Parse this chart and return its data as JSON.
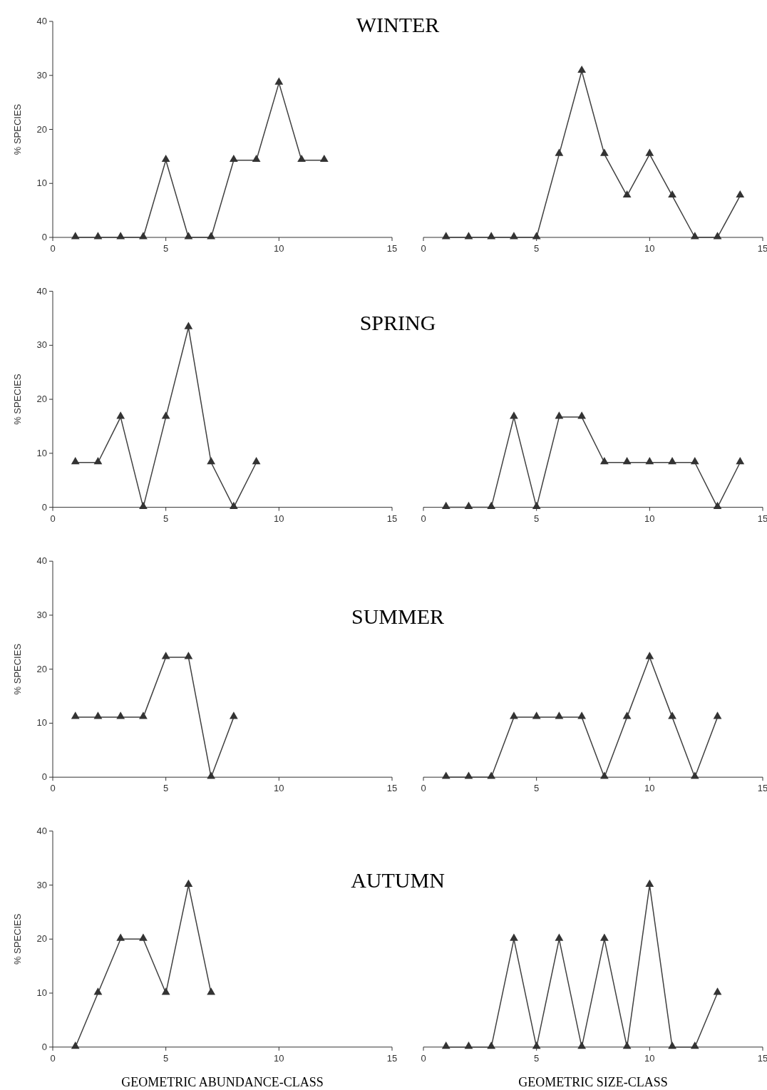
{
  "chart_data": [
    {
      "type": "line",
      "title": "WINTER",
      "ylabel": "% SPECIES",
      "x": [
        1,
        2,
        3,
        4,
        5,
        6,
        7,
        8,
        9,
        10,
        11,
        12
      ],
      "values": [
        0,
        0,
        0,
        0,
        14.3,
        0,
        0,
        14.3,
        14.3,
        28.6,
        14.3,
        14.3
      ],
      "color": "#404040",
      "marker": "triangle",
      "xlim": [
        0,
        15
      ],
      "xticks": [
        0,
        5,
        10,
        15
      ],
      "ylim": [
        0,
        40
      ],
      "yticks": [
        0,
        10,
        20,
        30,
        40
      ]
    },
    {
      "type": "line",
      "x": [
        1,
        2,
        3,
        4,
        5,
        6,
        7,
        8,
        9,
        10,
        11,
        12,
        13,
        14
      ],
      "values": [
        0,
        0,
        0,
        0,
        0,
        15.4,
        30.8,
        15.4,
        7.7,
        15.4,
        7.7,
        0,
        0,
        7.7
      ],
      "color": "#404040",
      "marker": "triangle",
      "xlim": [
        0,
        15
      ],
      "xticks": [
        0,
        5,
        10,
        15
      ],
      "ylim": [
        0,
        40
      ],
      "tick_labels": "x"
    },
    {
      "type": "line",
      "title": "SPRING",
      "ylabel": "% SPECIES",
      "x": [
        1,
        2,
        3,
        4,
        5,
        6,
        7,
        8,
        9
      ],
      "values": [
        8.3,
        8.3,
        16.7,
        0,
        16.7,
        33.3,
        8.3,
        0,
        8.3
      ],
      "color": "#404040",
      "marker": "triangle",
      "xlim": [
        0,
        15
      ],
      "xticks": [
        0,
        5,
        10,
        15
      ],
      "ylim": [
        0,
        40
      ],
      "yticks": [
        0,
        10,
        20,
        30,
        40
      ]
    },
    {
      "type": "line",
      "x": [
        1,
        2,
        3,
        4,
        5,
        6,
        7,
        8,
        9,
        10,
        11,
        12,
        13,
        14
      ],
      "values": [
        0,
        0,
        0,
        16.7,
        0,
        16.7,
        16.7,
        8.3,
        8.3,
        8.3,
        8.3,
        8.3,
        0,
        8.3
      ],
      "color": "#404040",
      "marker": "triangle",
      "xlim": [
        0,
        15
      ],
      "xticks": [
        0,
        5,
        10,
        15
      ],
      "ylim": [
        0,
        40
      ],
      "tick_labels": "x"
    },
    {
      "type": "line",
      "title": "SUMMER",
      "ylabel": "% SPECIES",
      "x": [
        1,
        2,
        3,
        4,
        5,
        6,
        7,
        8
      ],
      "values": [
        11.1,
        11.1,
        11.1,
        11.1,
        22.2,
        22.2,
        0,
        11.1
      ],
      "color": "#404040",
      "marker": "triangle",
      "xlim": [
        0,
        15
      ],
      "xticks": [
        0,
        5,
        10,
        15
      ],
      "ylim": [
        0,
        40
      ],
      "yticks": [
        0,
        10,
        20,
        30,
        40
      ]
    },
    {
      "type": "line",
      "x": [
        1,
        2,
        3,
        4,
        5,
        6,
        7,
        8,
        9,
        10,
        11,
        12,
        13
      ],
      "values": [
        0,
        0,
        0,
        11.1,
        11.1,
        11.1,
        11.1,
        0,
        11.1,
        22.2,
        11.1,
        0,
        11.1
      ],
      "color": "#404040",
      "marker": "triangle",
      "xlim": [
        0,
        15
      ],
      "xticks": [
        0,
        5,
        10,
        15
      ],
      "ylim": [
        0,
        40
      ],
      "tick_labels": "x"
    },
    {
      "type": "line",
      "title": "AUTUMN",
      "ylabel": "% SPECIES",
      "xlabel": "GEOMETRIC ABUNDANCE-CLASS",
      "x": [
        1,
        2,
        3,
        4,
        5,
        6,
        7
      ],
      "values": [
        0,
        10,
        20,
        20,
        10,
        30,
        10
      ],
      "color": "#404040",
      "marker": "triangle",
      "xlim": [
        0,
        15
      ],
      "xticks": [
        0,
        5,
        10,
        15
      ],
      "ylim": [
        0,
        40
      ],
      "yticks": [
        0,
        10,
        20,
        30,
        40
      ]
    },
    {
      "type": "line",
      "xlabel": "GEOMETRIC SIZE-CLASS",
      "x": [
        1,
        2,
        3,
        4,
        5,
        6,
        7,
        8,
        9,
        10,
        11,
        12,
        13
      ],
      "values": [
        0,
        0,
        0,
        20,
        0,
        20,
        0,
        20,
        0,
        30,
        0,
        0,
        10
      ],
      "color": "#404040",
      "marker": "triangle",
      "xlim": [
        0,
        15
      ],
      "xticks": [
        0,
        5,
        10,
        15
      ],
      "ylim": [
        0,
        40
      ],
      "tick_labels": "x"
    }
  ]
}
